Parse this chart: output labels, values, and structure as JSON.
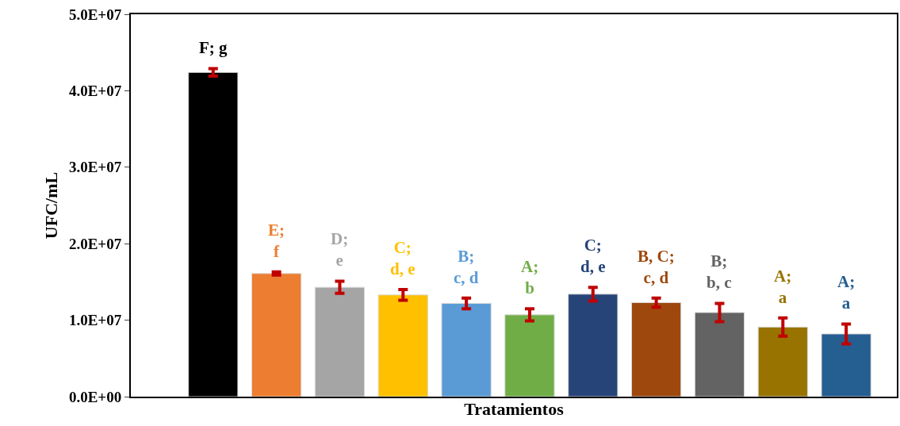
{
  "chart_data": {
    "type": "bar",
    "xlabel": "Tratamientos",
    "ylabel": "UFC/mL",
    "categories": [
      null,
      null,
      null,
      null,
      null,
      null,
      null,
      null,
      null,
      null,
      null
    ],
    "values": [
      42400000.0,
      16100000.0,
      14300000.0,
      13300000.0,
      12200000.0,
      10700000.0,
      13400000.0,
      12300000.0,
      11000000.0,
      9100000.0,
      8200000.0
    ],
    "errors": [
      500000.0,
      200000.0,
      800000.0,
      700000.0,
      700000.0,
      800000.0,
      900000.0,
      600000.0,
      1200000.0,
      1200000.0,
      1300000.0
    ],
    "colors": [
      "#000000",
      "#ed7d31",
      "#a5a5a5",
      "#ffc000",
      "#5b9bd5",
      "#70ad47",
      "#264478",
      "#9e480e",
      "#636363",
      "#997300",
      "#255e91"
    ],
    "value_labels": [
      "F; g",
      "E;\nf",
      "D;\ne",
      "C;\nd, e",
      "B;\nc, d",
      "A;\nb",
      "C;\nd, e",
      "B, C;\nc, d",
      "B;\nb, c",
      "A;\na",
      "A;\na"
    ],
    "ylim": [
      0,
      50000000.0
    ],
    "yticks": [
      {
        "value": 0,
        "label": "0.0E+00"
      },
      {
        "value": 10000000.0,
        "label": "1.0E+07"
      },
      {
        "value": 20000000.0,
        "label": "2.0E+07"
      },
      {
        "value": 30000000.0,
        "label": "3.0E+07"
      },
      {
        "value": 40000000.0,
        "label": "4.0E+07"
      },
      {
        "value": 50000000.0,
        "label": "5.0E+07"
      }
    ]
  }
}
